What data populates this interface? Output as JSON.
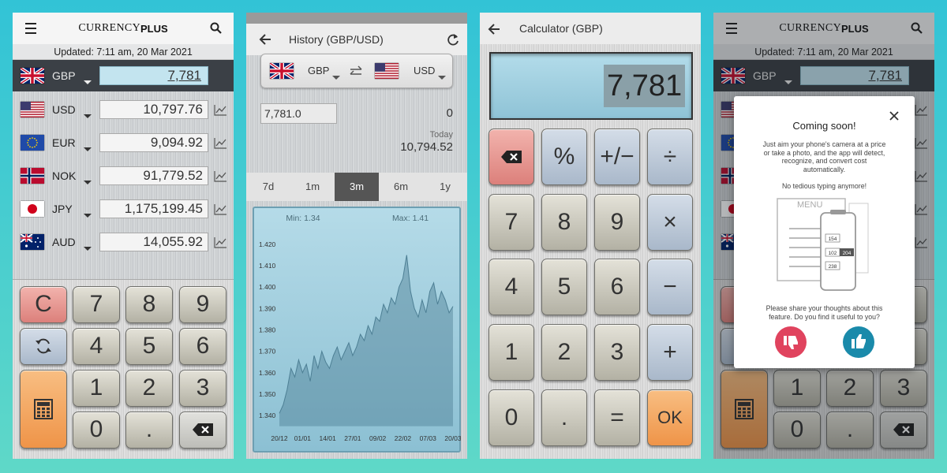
{
  "screens": [
    {
      "brand": "CURRENCY",
      "brand_bold": "PLUS",
      "updated": "Updated: 7:11 am, 20 Mar 2021",
      "rows": [
        {
          "code": "GBP",
          "amount": "7,781"
        },
        {
          "code": "USD",
          "amount": "10,797.76"
        },
        {
          "code": "EUR",
          "amount": "9,094.92"
        },
        {
          "code": "NOK",
          "amount": "91,779.52"
        },
        {
          "code": "JPY",
          "amount": "1,175,199.45"
        },
        {
          "code": "AUD",
          "amount": "14,055.92"
        }
      ],
      "keys": {
        "clear": "C",
        "digits": [
          "7",
          "8",
          "9",
          "4",
          "5",
          "6",
          "1",
          "2",
          "3",
          "0",
          "."
        ]
      }
    },
    {
      "title": "History (GBP/USD)",
      "from": "GBP",
      "to": "USD",
      "input": "7,781.0",
      "input_result": "0",
      "date_label": "Today",
      "result": "10,794.52",
      "tabs": [
        "7d",
        "1m",
        "3m",
        "6m",
        "1y"
      ],
      "active_tab": 2,
      "chart_data": {
        "type": "area",
        "min_label": "Min: 1.34",
        "max_label": "Max: 1.41",
        "color": "#4d7f94",
        "x": [
          0,
          2,
          4,
          6,
          8,
          10,
          12,
          14,
          16,
          18,
          20,
          22,
          24,
          26,
          28,
          30,
          32,
          34,
          36,
          38,
          40,
          42,
          44,
          46,
          48,
          50,
          52,
          54,
          56,
          58,
          60,
          62,
          64,
          66,
          68,
          70,
          72,
          74,
          76,
          78,
          80,
          82,
          84,
          86,
          88,
          90
        ],
        "values": [
          1.341,
          1.345,
          1.352,
          1.362,
          1.358,
          1.366,
          1.36,
          1.364,
          1.356,
          1.368,
          1.362,
          1.37,
          1.365,
          1.362,
          1.368,
          1.372,
          1.366,
          1.37,
          1.374,
          1.368,
          1.372,
          1.378,
          1.375,
          1.382,
          1.378,
          1.386,
          1.384,
          1.392,
          1.388,
          1.395,
          1.392,
          1.4,
          1.404,
          1.415,
          1.398,
          1.39,
          1.386,
          1.394,
          1.388,
          1.398,
          1.402,
          1.392,
          1.398,
          1.394,
          1.388,
          1.391
        ],
        "xlim": [
          0,
          90
        ],
        "xticks": [
          {
            "value": 0,
            "label": "20/12"
          },
          {
            "value": 12,
            "label": "01/01"
          },
          {
            "value": 25,
            "label": "14/01"
          },
          {
            "value": 38,
            "label": "27/01"
          },
          {
            "value": 51,
            "label": "09/02"
          },
          {
            "value": 64,
            "label": "22/02"
          },
          {
            "value": 77,
            "label": "07/03"
          },
          {
            "value": 90,
            "label": "20/03"
          }
        ],
        "ylim": [
          1.335,
          1.425
        ],
        "yticks": [
          {
            "value": 1.34,
            "label": "1.340"
          },
          {
            "value": 1.35,
            "label": "1.350"
          },
          {
            "value": 1.36,
            "label": "1.360"
          },
          {
            "value": 1.37,
            "label": "1.370"
          },
          {
            "value": 1.38,
            "label": "1.380"
          },
          {
            "value": 1.39,
            "label": "1.390"
          },
          {
            "value": 1.4,
            "label": "1.400"
          },
          {
            "value": 1.41,
            "label": "1.410"
          },
          {
            "value": 1.42,
            "label": "1.420"
          }
        ]
      }
    },
    {
      "title": "Calculator (GBP)",
      "display": "7,781",
      "keys": [
        "%",
        "+/−",
        "÷",
        "7",
        "8",
        "9",
        "×",
        "4",
        "5",
        "6",
        "−",
        "1",
        "2",
        "3",
        "+",
        "0",
        ".",
        "=",
        "OK"
      ]
    },
    {
      "dialog": {
        "title": "Coming soon!",
        "body": "Just aim your phone's camera at a price or take a photo, and the app will detect, recognize, and convert cost automatically.",
        "tagline": "No tedious typing anymore!",
        "illustration": [
          "MENU",
          "154",
          "102",
          "204",
          "238"
        ],
        "question": "Please share your thoughts about this feature. Do you find it useful to you?"
      }
    }
  ]
}
